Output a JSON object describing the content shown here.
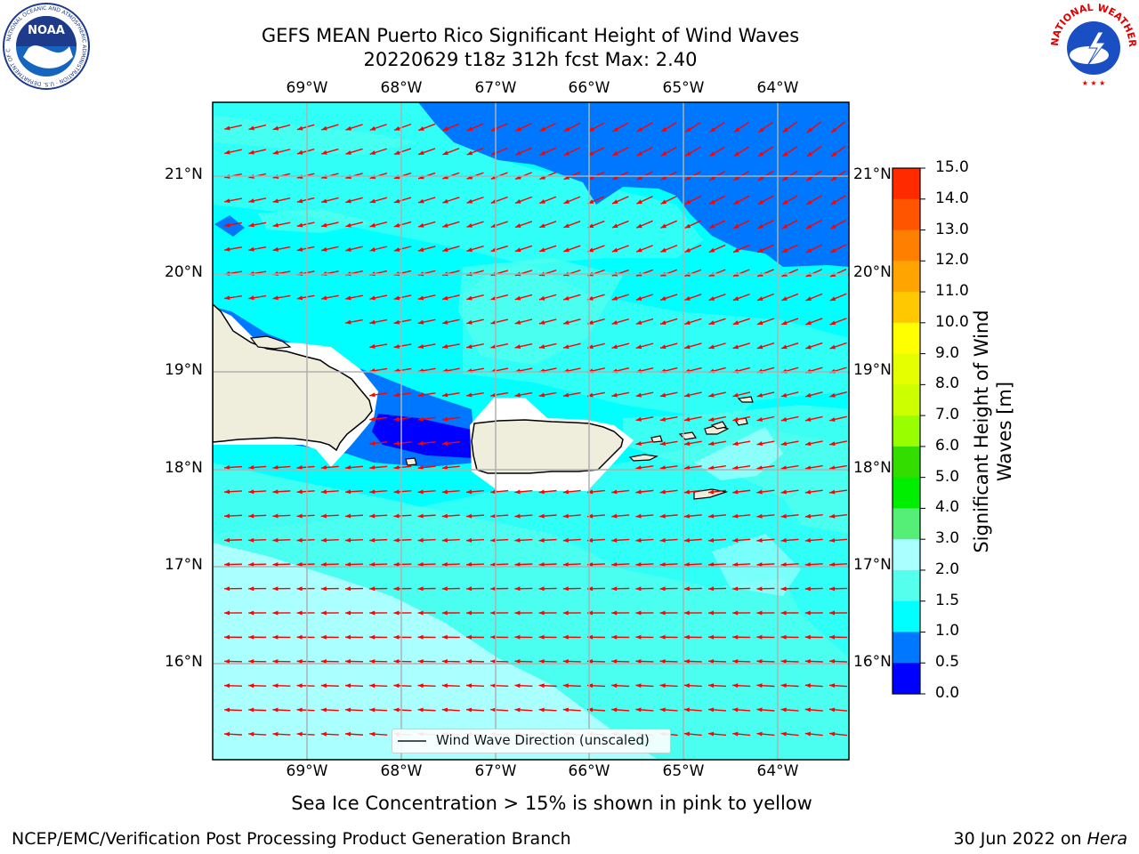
{
  "title": {
    "line1": "GEFS MEAN Puerto Rico Significant Height of Wind Waves",
    "line2": "20220629 t18z 312h fcst   Max: 2.40"
  },
  "logos": {
    "left": {
      "name": "NOAA",
      "ring_text": "NATIONAL OCEANIC AND ATMOSPHERIC ADMINISTRATION · U.S. DEPARTMENT OF COMMERCE"
    },
    "right": {
      "name": "NATIONAL WEATHER SERVICE"
    }
  },
  "map": {
    "lon_labels": [
      "69°W",
      "68°W",
      "67°W",
      "66°W",
      "65°W",
      "64°W"
    ],
    "lat_labels": [
      "21°N",
      "20°N",
      "19°N",
      "18°N",
      "17°N",
      "16°N"
    ],
    "gridlines": true,
    "arrow_color": "#ff0000",
    "land_color": "#efeedc",
    "legend_label": "Wind Wave Direction (unscaled)"
  },
  "colorbar": {
    "label": "Significant Height of Wind Waves [m]",
    "ticks": [
      "15.0",
      "14.0",
      "13.0",
      "12.0",
      "11.0",
      "10.0",
      "9.0",
      "8.0",
      "7.0",
      "6.0",
      "5.0",
      "4.0",
      "3.0",
      "2.0",
      "1.5",
      "1.0",
      "0.5",
      "0.0"
    ],
    "colors_top_to_bottom": [
      "#ff0000",
      "#ff2a00",
      "#ff5500",
      "#ff8000",
      "#ffa400",
      "#ffc800",
      "#ffff00",
      "#e6ff00",
      "#ccff00",
      "#99ff00",
      "#33dd00",
      "#00ee00",
      "#55ee77",
      "#aaffff",
      "#55ffee",
      "#00ffff",
      "#0077ff",
      "#0000ff"
    ]
  },
  "notes": {
    "sea_ice": "Sea Ice Concentration > 15% is shown in pink to yellow",
    "producer": "NCEP/EMC/Verification Post Processing Product Generation Branch",
    "date_prefix": "30 Jun 2022 on ",
    "machine": "Hera"
  }
}
